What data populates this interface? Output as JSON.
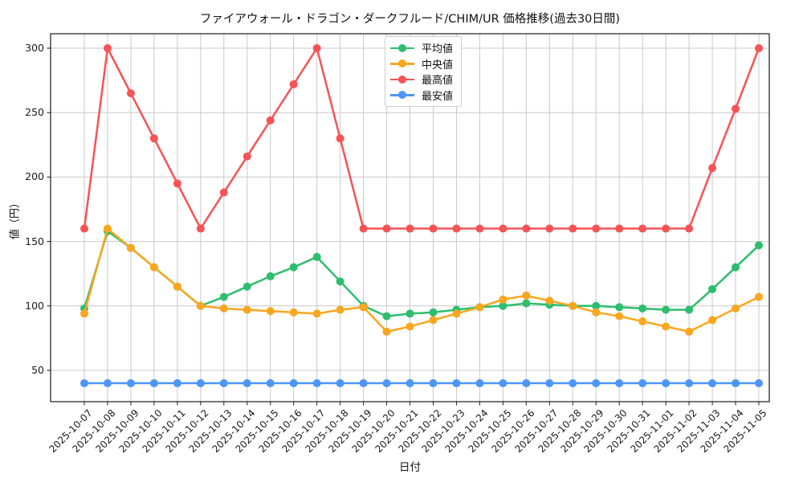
{
  "title": "ファイアウォール・ドラゴン・ダークフルード/CHIM/UR 価格推移(過去30日間)",
  "chart_data": {
    "type": "line",
    "title": "ファイアウォール・ドラゴン・ダークフルード/CHIM/UR 価格推移(過去30日間)",
    "xlabel": "日付",
    "ylabel": "値（円）",
    "x": [
      "2025-10-07",
      "2025-10-08",
      "2025-10-09",
      "2025-10-10",
      "2025-10-11",
      "2025-10-12",
      "2025-10-13",
      "2025-10-14",
      "2025-10-15",
      "2025-10-16",
      "2025-10-17",
      "2025-10-18",
      "2025-10-19",
      "2025-10-20",
      "2025-10-21",
      "2025-10-22",
      "2025-10-23",
      "2025-10-24",
      "2025-10-25",
      "2025-10-26",
      "2025-10-27",
      "2025-10-28",
      "2025-10-29",
      "2025-10-30",
      "2025-10-31",
      "2025-11-01",
      "2025-11-02",
      "2025-11-03",
      "2025-11-04",
      "2025-11-05"
    ],
    "series": [
      {
        "name": "平均値",
        "color": "#2dbe6e",
        "values": [
          98,
          158,
          145,
          130,
          115,
          100,
          107,
          115,
          123,
          130,
          138,
          119,
          100,
          92,
          94,
          95,
          97,
          99,
          100,
          102,
          101,
          100,
          100,
          99,
          98,
          97,
          97,
          113,
          130,
          147
        ]
      },
      {
        "name": "中央値",
        "color": "#faa61e",
        "values": [
          94,
          160,
          145,
          130,
          115,
          100,
          98,
          97,
          96,
          95,
          94,
          97,
          99,
          80,
          84,
          89,
          94,
          99,
          105,
          108,
          104,
          100,
          95,
          92,
          88,
          84,
          80,
          89,
          98,
          107
        ]
      },
      {
        "name": "最高値",
        "color": "#f65356",
        "values": [
          160,
          300,
          265,
          230,
          195,
          160,
          188,
          216,
          244,
          272,
          300,
          230,
          160,
          160,
          160,
          160,
          160,
          160,
          160,
          160,
          160,
          160,
          160,
          160,
          160,
          160,
          160,
          207,
          253,
          300
        ]
      },
      {
        "name": "最安値",
        "color": "#4d96f5",
        "values": [
          40,
          40,
          40,
          40,
          40,
          40,
          40,
          40,
          40,
          40,
          40,
          40,
          40,
          40,
          40,
          40,
          40,
          40,
          40,
          40,
          40,
          40,
          40,
          40,
          40,
          40,
          40,
          40,
          40,
          40
        ]
      }
    ],
    "yticks": [
      50,
      100,
      150,
      200,
      250,
      300
    ],
    "ylim": [
      26,
      311
    ],
    "grid": true,
    "legend_position": "upper-center-left",
    "colors": {
      "grid": "#c9c9c9",
      "spine": "#1a1a1a",
      "background": "#ffffff"
    }
  }
}
